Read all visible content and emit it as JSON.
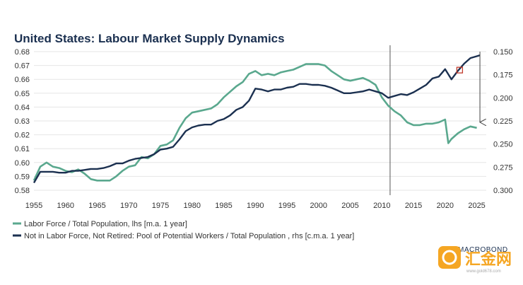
{
  "chart_data": {
    "type": "line",
    "title": "United States: Labour Market Supply Dynamics",
    "x_ticks": [
      "1955",
      "1960",
      "1965",
      "1970",
      "1975",
      "1980",
      "1985",
      "1990",
      "1995",
      "2000",
      "2005",
      "2010",
      "2015",
      "2020",
      "2025"
    ],
    "xlim": [
      1955,
      2026.5
    ],
    "y_left": {
      "lim": [
        0.58,
        0.68
      ],
      "ticks": [
        "0.58",
        "0.59",
        "0.60",
        "0.61",
        "0.62",
        "0.63",
        "0.64",
        "0.65",
        "0.66",
        "0.67",
        "0.68"
      ]
    },
    "y_right": {
      "lim": [
        0.3,
        0.15
      ],
      "inverted": true,
      "ticks": [
        "0.150",
        "0.175",
        "0.200",
        "0.225",
        "0.250",
        "0.275",
        "0.300"
      ]
    },
    "grid": "horizontal",
    "legend_position": "bottom-left",
    "series": [
      {
        "name": "Labor Force / Total Population, lhs [m.a. 1 year]",
        "axis": "left",
        "color": "#5aa88e",
        "x": [
          1955,
          1956,
          1957,
          1958,
          1959,
          1960,
          1961,
          1962,
          1963,
          1964,
          1965,
          1966,
          1967,
          1968,
          1969,
          1970,
          1971,
          1972,
          1973,
          1974,
          1975,
          1976,
          1977,
          1978,
          1979,
          1980,
          1981,
          1982,
          1983,
          1984,
          1985,
          1986,
          1987,
          1988,
          1989,
          1990,
          1991,
          1992,
          1993,
          1994,
          1995,
          1996,
          1997,
          1998,
          1999,
          2000,
          2001,
          2002,
          2003,
          2004,
          2005,
          2006,
          2007,
          2008,
          2009,
          2010,
          2011,
          2012,
          2013,
          2014,
          2015,
          2016,
          2017,
          2018,
          2019,
          2020,
          2020.5,
          2021,
          2022,
          2023,
          2024,
          2025
        ],
        "y": [
          0.587,
          0.597,
          0.6,
          0.597,
          0.596,
          0.594,
          0.593,
          0.595,
          0.592,
          0.588,
          0.587,
          0.587,
          0.587,
          0.59,
          0.594,
          0.597,
          0.598,
          0.604,
          0.603,
          0.606,
          0.612,
          0.613,
          0.616,
          0.625,
          0.632,
          0.636,
          0.637,
          0.638,
          0.639,
          0.642,
          0.647,
          0.651,
          0.655,
          0.658,
          0.664,
          0.666,
          0.663,
          0.664,
          0.663,
          0.665,
          0.666,
          0.667,
          0.669,
          0.671,
          0.671,
          0.671,
          0.67,
          0.666,
          0.663,
          0.66,
          0.659,
          0.66,
          0.661,
          0.659,
          0.656,
          0.647,
          0.641,
          0.637,
          0.634,
          0.629,
          0.627,
          0.627,
          0.628,
          0.628,
          0.629,
          0.631,
          0.614,
          0.617,
          0.621,
          0.624,
          0.626,
          0.625
        ]
      },
      {
        "name": "Not in Labor Force, Not Retired: Pool of Potential Workers / Total Population , rhs [c.m.a. 1 year]",
        "axis": "right",
        "color": "#1b3050",
        "x": [
          1955,
          1956,
          1957,
          1958,
          1959,
          1960,
          1961,
          1962,
          1963,
          1964,
          1965,
          1966,
          1967,
          1968,
          1969,
          1970,
          1971,
          1972,
          1973,
          1974,
          1975,
          1976,
          1977,
          1978,
          1979,
          1980,
          1981,
          1982,
          1983,
          1984,
          1985,
          1986,
          1987,
          1988,
          1989,
          1990,
          1991,
          1992,
          1993,
          1994,
          1995,
          1996,
          1997,
          1998,
          1999,
          2000,
          2001,
          2002,
          2003,
          2004,
          2005,
          2006,
          2007,
          2008,
          2009,
          2010,
          2011,
          2012,
          2013,
          2014,
          2015,
          2016,
          2017,
          2018,
          2019,
          2020,
          2021,
          2022,
          2023,
          2024,
          2025,
          2025.5
        ],
        "y": [
          0.292,
          0.28,
          0.28,
          0.28,
          0.281,
          0.281,
          0.279,
          0.279,
          0.278,
          0.277,
          0.277,
          0.276,
          0.274,
          0.271,
          0.271,
          0.268,
          0.266,
          0.265,
          0.264,
          0.261,
          0.256,
          0.255,
          0.253,
          0.245,
          0.236,
          0.232,
          0.23,
          0.229,
          0.229,
          0.225,
          0.223,
          0.219,
          0.213,
          0.21,
          0.203,
          0.19,
          0.191,
          0.193,
          0.191,
          0.191,
          0.189,
          0.188,
          0.185,
          0.185,
          0.186,
          0.186,
          0.187,
          0.189,
          0.192,
          0.195,
          0.195,
          0.194,
          0.193,
          0.191,
          0.193,
          0.195,
          0.2,
          0.198,
          0.196,
          0.197,
          0.194,
          0.19,
          0.186,
          0.179,
          0.177,
          0.169,
          0.18,
          0.171,
          0.163,
          0.157,
          0.155,
          0.154
        ]
      }
    ],
    "annotations": {
      "vertical_line_x": 2011.3,
      "marker_x": 2022.3,
      "marker_y_right": 0.17,
      "arrow_x": 2025.5,
      "arrow_from_left": 0.68,
      "arrow_to_left": 0.627
    }
  },
  "brand": {
    "label": "MACROBOND"
  },
  "watermark": {
    "main": "汇金网",
    "sub": "www.gold678.com"
  },
  "colors": {
    "teal": "#5aa88e",
    "navy": "#1b3050",
    "marker": "#c0392b",
    "watermark": "#f5a623"
  }
}
